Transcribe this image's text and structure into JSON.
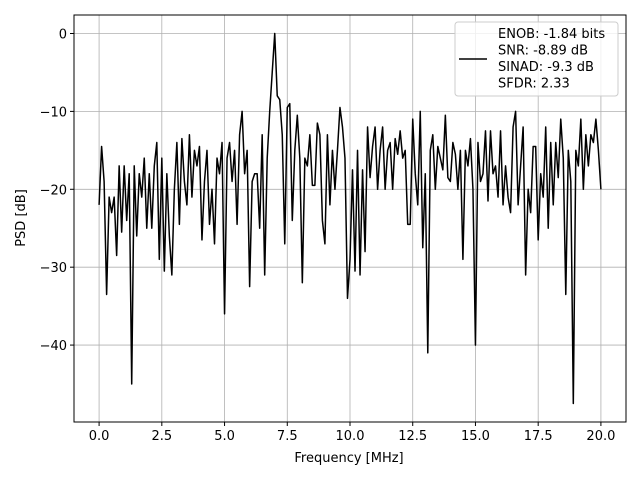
{
  "chart_data": {
    "type": "line",
    "xlabel": "Frequency [MHz]",
    "ylabel": "PSD [dB]",
    "xlim": [
      -1,
      21
    ],
    "ylim": [
      -49.875,
      2.375
    ],
    "grid": true,
    "legend": "upper right",
    "xticks": [
      {
        "value": 0,
        "label": "0.0"
      },
      2.5,
      {
        "value": 5,
        "label": "5.0"
      },
      7.5,
      {
        "value": 10,
        "label": "10.0"
      },
      12.5,
      {
        "value": 15,
        "label": "15.0"
      },
      17.5,
      {
        "value": 20,
        "label": "20.0"
      }
    ],
    "yticks": [
      {
        "value": 0,
        "label": "0"
      },
      {
        "value": -10,
        "label": "−10"
      },
      {
        "value": -20,
        "label": "−20"
      },
      {
        "value": -30,
        "label": "−30"
      },
      {
        "value": -40,
        "label": "−40"
      }
    ],
    "x": [
      0,
      0.1,
      0.2,
      0.3,
      0.4,
      0.5,
      0.6,
      0.7,
      0.8,
      0.9,
      1,
      1.1,
      1.2,
      1.3,
      1.4,
      1.5,
      1.6,
      1.7,
      1.8,
      1.9,
      2,
      2.1,
      2.2,
      2.3,
      2.4,
      2.5,
      2.6,
      2.7,
      2.8,
      2.9,
      3,
      3.1,
      3.2,
      3.3,
      3.4,
      3.5,
      3.6,
      3.7,
      3.8,
      3.9,
      4,
      4.1,
      4.2,
      4.3,
      4.4,
      4.5,
      4.6,
      4.7,
      4.8,
      4.9,
      5,
      5.1,
      5.2,
      5.3,
      5.4,
      5.5,
      5.6,
      5.7,
      5.8,
      5.9,
      6,
      6.1,
      6.2,
      6.3,
      6.4,
      6.5,
      6.6,
      6.7,
      6.8,
      6.9,
      7,
      7.1,
      7.2,
      7.3,
      7.4,
      7.5,
      7.6,
      7.7,
      7.8,
      7.9,
      8,
      8.1,
      8.2,
      8.3,
      8.4,
      8.5,
      8.6,
      8.7,
      8.8,
      8.9,
      9,
      9.1,
      9.2,
      9.3,
      9.4,
      9.5,
      9.6,
      9.7,
      9.8,
      9.9,
      10,
      10.1,
      10.2,
      10.3,
      10.4,
      10.5,
      10.6,
      10.7,
      10.8,
      10.9,
      11,
      11.1,
      11.2,
      11.3,
      11.4,
      11.5,
      11.6,
      11.7,
      11.8,
      11.9,
      12,
      12.1,
      12.2,
      12.3,
      12.4,
      12.5,
      12.6,
      12.7,
      12.8,
      12.9,
      13,
      13.1,
      13.2,
      13.3,
      13.4,
      13.5,
      13.6,
      13.7,
      13.8,
      13.9,
      14,
      14.1,
      14.2,
      14.3,
      14.4,
      14.5,
      14.6,
      14.7,
      14.8,
      14.9,
      15,
      15.1,
      15.2,
      15.3,
      15.4,
      15.5,
      15.6,
      15.7,
      15.8,
      15.9,
      16,
      16.1,
      16.2,
      16.3,
      16.4,
      16.5,
      16.6,
      16.7,
      16.8,
      16.9,
      17,
      17.1,
      17.2,
      17.3,
      17.4,
      17.5,
      17.6,
      17.7,
      17.8,
      17.9,
      18,
      18.1,
      18.2,
      18.3,
      18.4,
      18.5,
      18.6,
      18.7,
      18.8,
      18.9,
      19,
      19.1,
      19.2,
      19.3,
      19.4,
      19.5,
      19.6,
      19.7,
      19.8,
      19.9,
      20
    ],
    "series": [
      {
        "name": "ENOB: -1.84 bits\nSNR: -8.89 dB\nSINAD: -9.3 dB\nSFDR: 2.33",
        "color": "#000000",
        "values": [
          -22,
          -14.5,
          -19,
          -33.5,
          -21,
          -23,
          -21,
          -28.5,
          -17,
          -25.5,
          -17,
          -24,
          -18,
          -45,
          -17,
          -26,
          -18,
          -21,
          -16,
          -25,
          -18,
          -25,
          -17,
          -14,
          -29,
          -16,
          -30.5,
          -18,
          -26,
          -31,
          -20,
          -14,
          -24.5,
          -13.5,
          -19,
          -22,
          -13,
          -21,
          -15,
          -17,
          -14.5,
          -26.5,
          -19,
          -15,
          -24.5,
          -20,
          -27,
          -16,
          -18,
          -14,
          -36,
          -16,
          -14,
          -19,
          -15,
          -24.5,
          -13,
          -10,
          -18,
          -15,
          -32.5,
          -19,
          -18,
          -18,
          -25,
          -13,
          -31,
          -16,
          -10,
          -5,
          0,
          -8,
          -8.5,
          -13,
          -27,
          -9.5,
          -9,
          -24,
          -15,
          -10.5,
          -16,
          -32,
          -16,
          -17,
          -13,
          -19.5,
          -19.5,
          -11.5,
          -13,
          -24,
          -27,
          -13,
          -22,
          -15,
          -20,
          -15,
          -9.5,
          -12,
          -16,
          -34,
          -29,
          -17.5,
          -30.5,
          -15,
          -31,
          -17.5,
          -28,
          -12,
          -18.5,
          -14.5,
          -12,
          -20,
          -15,
          -12,
          -20,
          -15,
          -14,
          -20,
          -13.5,
          -15.5,
          -12.5,
          -16,
          -15,
          -24.5,
          -24.5,
          -11,
          -18,
          -22,
          -10,
          -27.5,
          -18,
          -41,
          -15,
          -13,
          -20,
          -14.5,
          -16,
          -17.5,
          -10.5,
          -18.5,
          -19,
          -14,
          -15.5,
          -20,
          -15,
          -29,
          -15,
          -17,
          -13.5,
          -20,
          -40,
          -14,
          -19,
          -18,
          -12.5,
          -21.5,
          -12.5,
          -18,
          -17,
          -21,
          -12.5,
          -22,
          -17,
          -21,
          -23,
          -12,
          -10,
          -22,
          -17,
          -12,
          -31,
          -20,
          -23,
          -14.5,
          -14.5,
          -26.5,
          -18,
          -21,
          -12,
          -25,
          -14,
          -22,
          -14,
          -18.5,
          -11,
          -16,
          -33.5,
          -15,
          -19,
          -47.5,
          -15,
          -17,
          -11,
          -20,
          -13,
          -17,
          -13,
          -14,
          -11,
          -15,
          -20
        ]
      }
    ]
  }
}
